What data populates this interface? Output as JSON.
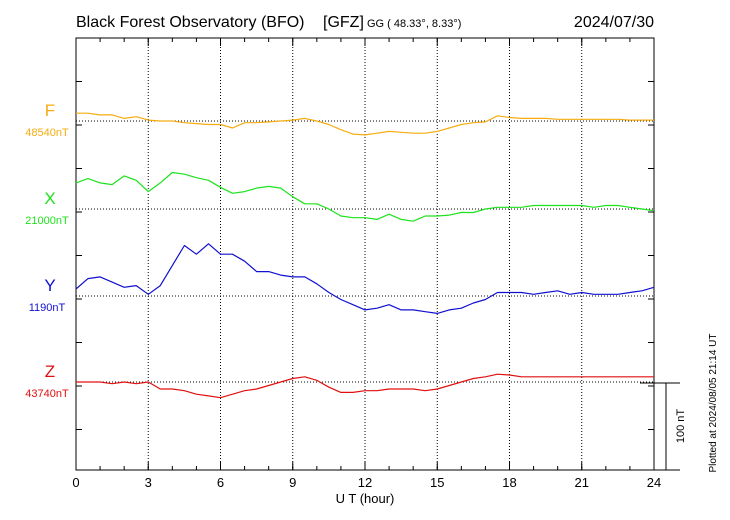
{
  "header": {
    "observatory": "Black Forest Observatory (BFO)",
    "institute": "[GFZ]",
    "coords": "GG ( 48.33°,   8.33°)",
    "date": "2024/07/30"
  },
  "footer": {
    "plotted": "Plotted at 2024/08/05 21:14 UT",
    "scale_label": "100 nT"
  },
  "colors": {
    "F": "#f5ac10",
    "X": "#1de21d",
    "Y": "#1010d0",
    "Z": "#e01010"
  },
  "chart_data": {
    "type": "line",
    "title": "Black Forest Observatory (BFO)",
    "xlabel": "U T (hour)",
    "ylabel": "",
    "xlim": [
      0,
      24
    ],
    "xticks": [
      0,
      3,
      6,
      9,
      12,
      15,
      18,
      21,
      24
    ],
    "grid": true,
    "scale_bar_nT": 100,
    "series": [
      {
        "name": "F",
        "baseline_label": "48540nT",
        "baseline_nT": 48540,
        "x": [
          0,
          0.5,
          1,
          1.5,
          2,
          2.5,
          3,
          3.5,
          4,
          4.5,
          5,
          5.5,
          6,
          6.5,
          7,
          7.5,
          8,
          8.5,
          9,
          9.5,
          10,
          10.5,
          11,
          11.5,
          12,
          12.5,
          13,
          13.5,
          14,
          14.5,
          15,
          15.5,
          16,
          16.5,
          17,
          17.5,
          18,
          18.5,
          19,
          19.5,
          20,
          20.5,
          21,
          21.5,
          22,
          22.5,
          23,
          23.5,
          24
        ],
        "values": [
          48549,
          48549,
          48547,
          48547,
          48543,
          48545,
          48541,
          48540,
          48540,
          48538,
          48537,
          48536,
          48536,
          48532,
          48538,
          48538,
          48539,
          48540,
          48541,
          48543,
          48540,
          48536,
          48530,
          48525,
          48524,
          48526,
          48528,
          48527,
          48526,
          48526,
          48528,
          48532,
          48536,
          48538,
          48539,
          48546,
          48544,
          48543,
          48543,
          48543,
          48542,
          48542,
          48542,
          48542,
          48542,
          48542,
          48541,
          48541,
          48541
        ]
      },
      {
        "name": "X",
        "baseline_label": "21000nT",
        "baseline_nT": 21000,
        "x": [
          0,
          0.5,
          1,
          1.5,
          2,
          2.5,
          3,
          3.5,
          4,
          4.5,
          5,
          5.5,
          6,
          6.5,
          7,
          7.5,
          8,
          8.5,
          9,
          9.5,
          10,
          10.5,
          11,
          11.5,
          12,
          12.5,
          13,
          13.5,
          14,
          14.5,
          15,
          15.5,
          16,
          16.5,
          17,
          17.5,
          18,
          18.5,
          19,
          19.5,
          20,
          20.5,
          21,
          21.5,
          22,
          22.5,
          23,
          23.5,
          24
        ],
        "values": [
          21030,
          21035,
          21030,
          21028,
          21038,
          21033,
          21020,
          21030,
          21042,
          21040,
          21036,
          21033,
          21025,
          21018,
          21020,
          21024,
          21026,
          21024,
          21014,
          21006,
          21006,
          21000,
          20992,
          20990,
          20990,
          20988,
          20994,
          20988,
          20986,
          20992,
          20992,
          20993,
          20996,
          20996,
          21000,
          21002,
          21002,
          21002,
          21004,
          21004,
          21004,
          21004,
          21004,
          21002,
          21004,
          21004,
          21002,
          21000,
          20998
        ]
      },
      {
        "name": "Y",
        "baseline_label": "1190nT",
        "baseline_nT": 1190,
        "x": [
          0,
          0.5,
          1,
          1.5,
          2,
          2.5,
          3,
          3.5,
          4,
          4.5,
          5,
          5.5,
          6,
          6.5,
          7,
          7.5,
          8,
          8.5,
          9,
          9.5,
          10,
          10.5,
          11,
          11.5,
          12,
          12.5,
          13,
          13.5,
          14,
          14.5,
          15,
          15.5,
          16,
          16.5,
          17,
          17.5,
          18,
          18.5,
          19,
          19.5,
          20,
          20.5,
          21,
          21.5,
          22,
          22.5,
          23,
          23.5,
          24
        ],
        "values": [
          1198,
          1210,
          1212,
          1206,
          1200,
          1202,
          1192,
          1202,
          1225,
          1248,
          1238,
          1250,
          1238,
          1238,
          1230,
          1218,
          1218,
          1214,
          1212,
          1212,
          1204,
          1194,
          1186,
          1180,
          1174,
          1176,
          1180,
          1174,
          1174,
          1172,
          1170,
          1174,
          1176,
          1182,
          1186,
          1194,
          1194,
          1194,
          1192,
          1194,
          1196,
          1192,
          1194,
          1192,
          1192,
          1192,
          1194,
          1196,
          1200
        ]
      },
      {
        "name": "Z",
        "baseline_label": "43740nT",
        "baseline_nT": 43740,
        "x": [
          0,
          0.5,
          1,
          1.5,
          2,
          2.5,
          3,
          3.5,
          4,
          4.5,
          5,
          5.5,
          6,
          6.5,
          7,
          7.5,
          8,
          8.5,
          9,
          9.5,
          10,
          10.5,
          11,
          11.5,
          12,
          12.5,
          13,
          13.5,
          14,
          14.5,
          15,
          15.5,
          16,
          16.5,
          17,
          17.5,
          18,
          18.5,
          19,
          19.5,
          20,
          20.5,
          21,
          21.5,
          22,
          22.5,
          23,
          23.5,
          24
        ],
        "values": [
          43740,
          43740,
          43740,
          43738,
          43740,
          43738,
          43740,
          43732,
          43732,
          43730,
          43726,
          43724,
          43722,
          43726,
          43730,
          43732,
          43736,
          43740,
          43744,
          43746,
          43742,
          43734,
          43728,
          43728,
          43730,
          43730,
          43732,
          43732,
          43732,
          43730,
          43732,
          43736,
          43740,
          43744,
          43746,
          43749,
          43748,
          43746,
          43746,
          43746,
          43746,
          43746,
          43746,
          43746,
          43746,
          43746,
          43746,
          43746,
          43746
        ]
      }
    ]
  }
}
